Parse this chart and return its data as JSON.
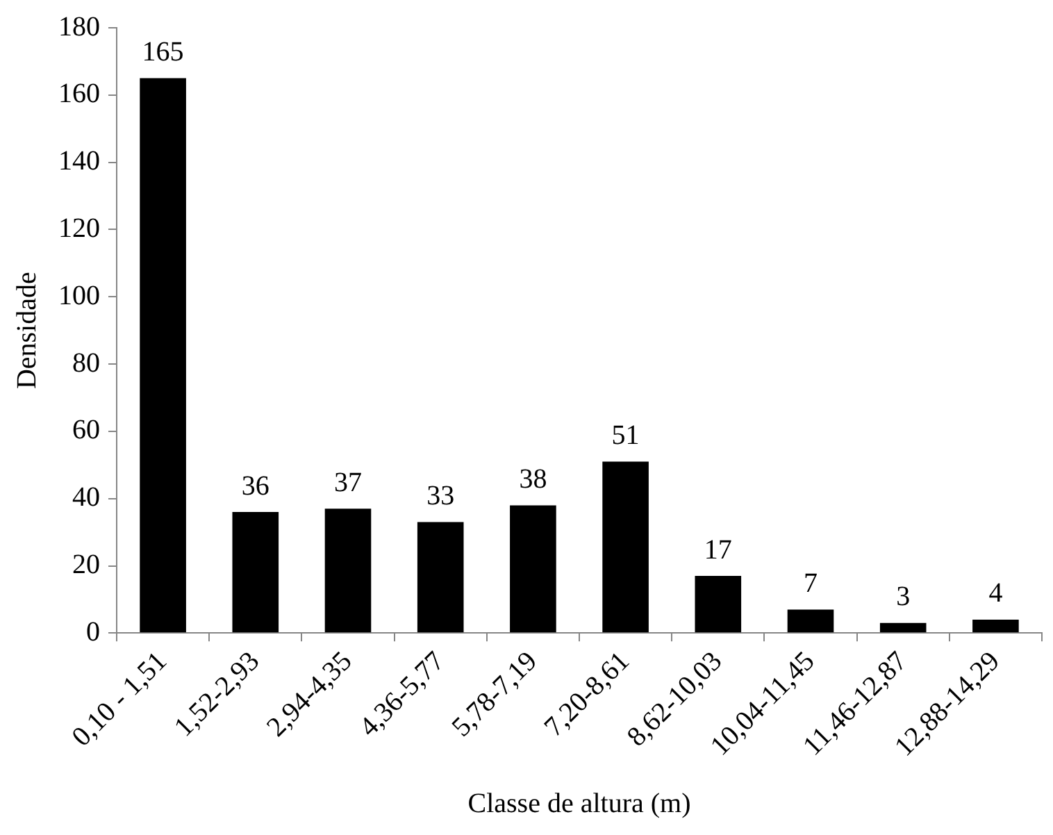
{
  "chart_data": {
    "type": "bar",
    "xlabel": "Classe de altura (m)",
    "ylabel": "Densidade",
    "categories": [
      "0,10 - 1,51",
      "1,52-2,93",
      "2,94-4,35",
      "4,36-5,77",
      "5,78-7,19",
      "7,20-8,61",
      "8,62-10,03",
      "10,04-11,45",
      "11,46-12,87",
      "12,88-14,29"
    ],
    "values": [
      165,
      36,
      37,
      33,
      38,
      51,
      17,
      7,
      3,
      4
    ],
    "color": "#000000",
    "ylim": [
      0,
      180
    ],
    "yticks": [
      0,
      20,
      40,
      60,
      80,
      100,
      120,
      140,
      160,
      180
    ],
    "grid": false,
    "legend": false,
    "data_labels": true
  }
}
